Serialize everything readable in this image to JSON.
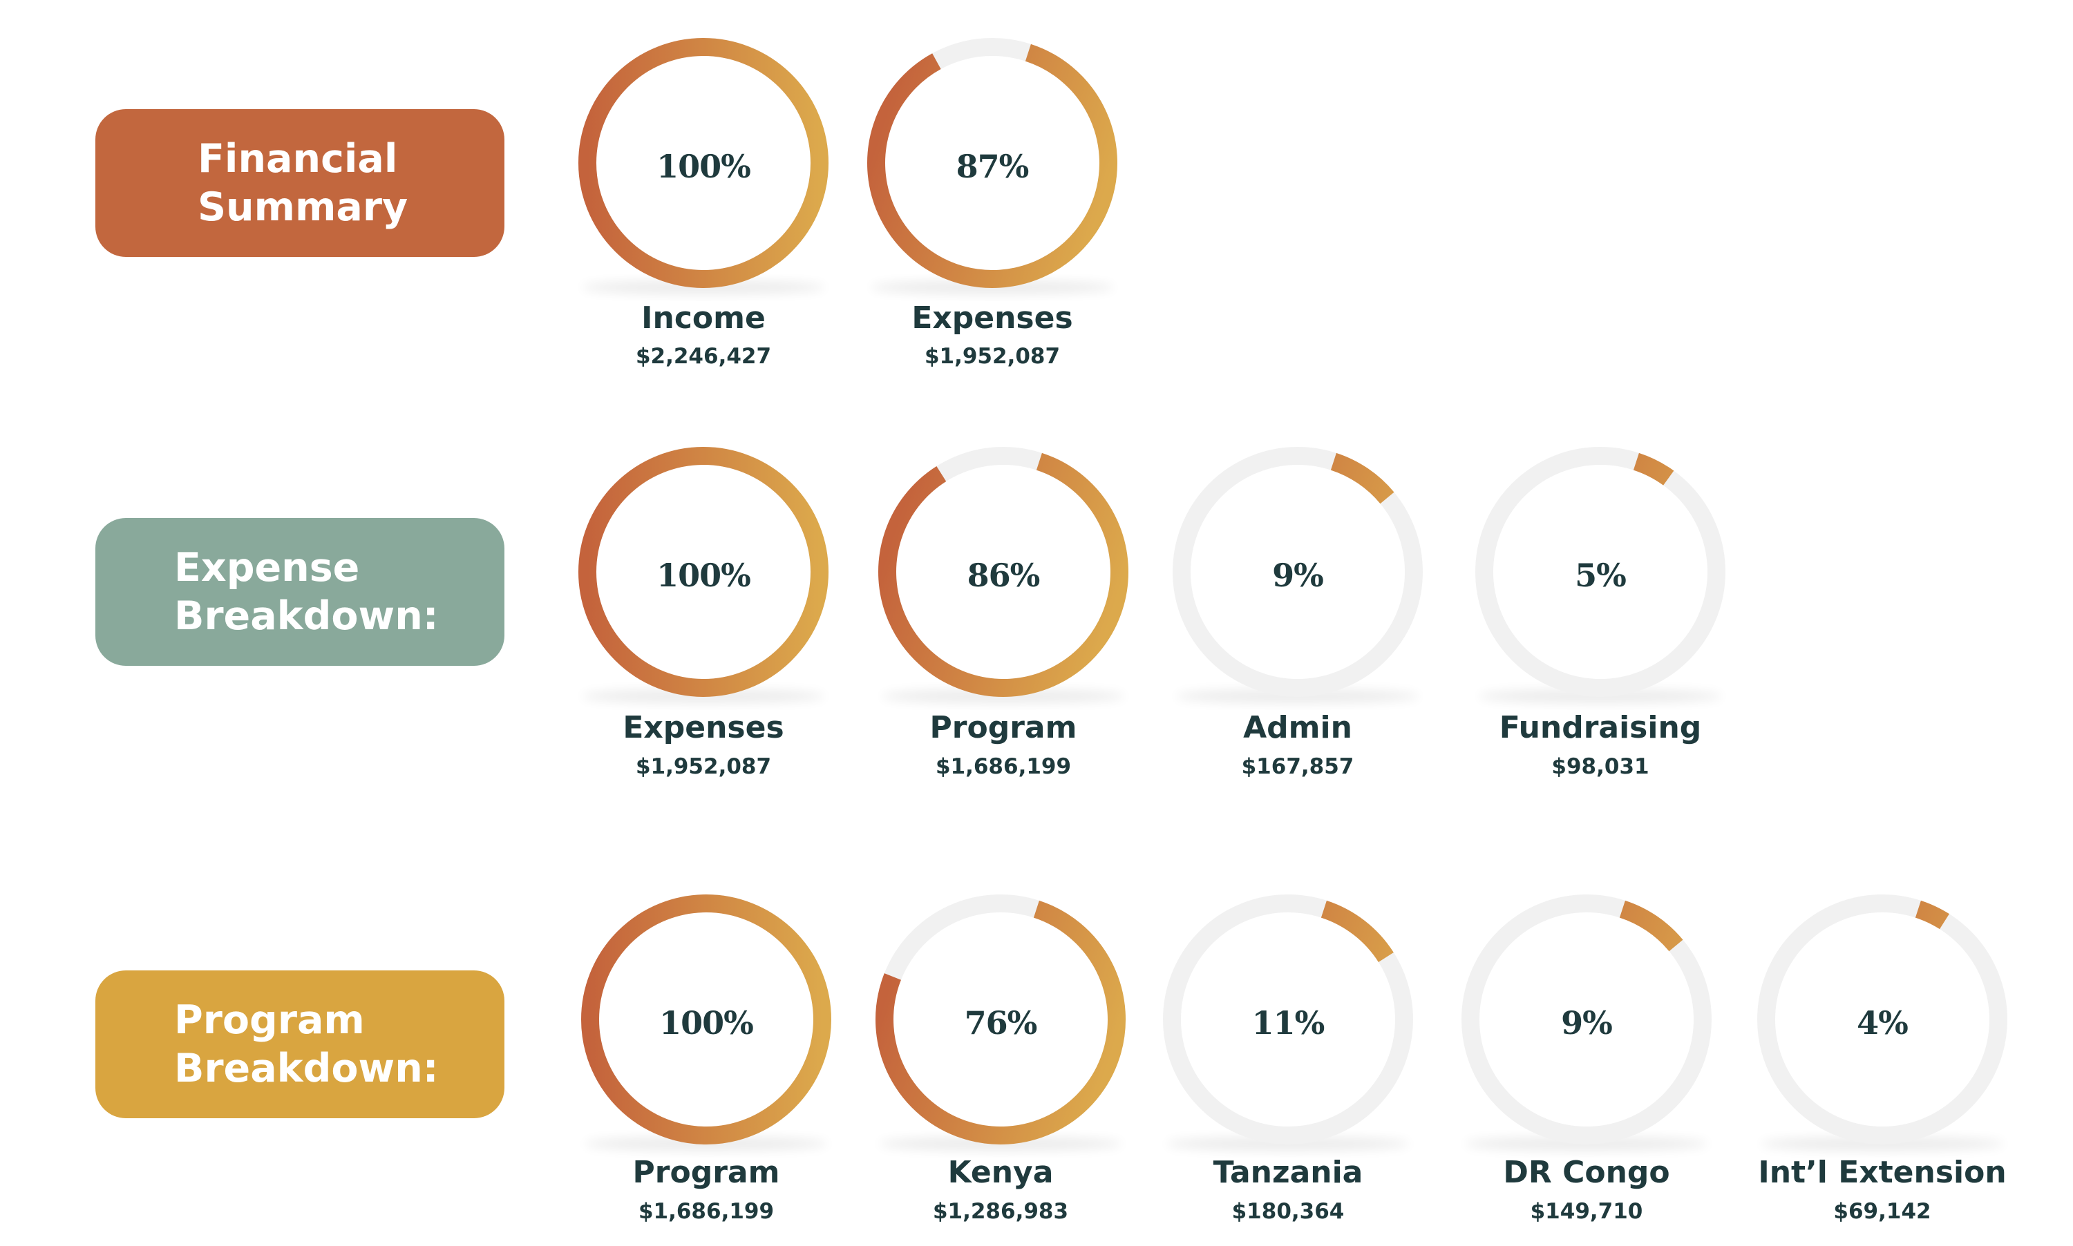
{
  "colors": {
    "ring_track": "#f1f1f1",
    "ring_gradient_start": "#c4633c",
    "ring_gradient_end": "#dca94c",
    "text_dark": "#1f3a3d"
  },
  "chart_data": [
    {
      "type": "donut",
      "section_label": [
        "Financial",
        "Summary"
      ],
      "section_color": "#c2673e",
      "rings": [
        {
          "percent": 100,
          "percent_label": "100%",
          "label": "Income",
          "amount": "$2,246,427"
        },
        {
          "percent": 87,
          "percent_label": "87%",
          "label": "Expenses",
          "amount": "$1,952,087"
        }
      ]
    },
    {
      "type": "donut",
      "section_label": [
        "Expense",
        "Breakdown:"
      ],
      "section_color": "#89a99b",
      "rings": [
        {
          "percent": 100,
          "percent_label": "100%",
          "label": "Expenses",
          "amount": "$1,952,087"
        },
        {
          "percent": 86,
          "percent_label": "86%",
          "label": "Program",
          "amount": "$1,686,199"
        },
        {
          "percent": 9,
          "percent_label": "9%",
          "label": "Admin",
          "amount": "$167,857"
        },
        {
          "percent": 5,
          "percent_label": "5%",
          "label": "Fundraising",
          "amount": "$98,031"
        }
      ]
    },
    {
      "type": "donut",
      "section_label": [
        "Program",
        "Breakdown:"
      ],
      "section_color": "#d9a540",
      "rings": [
        {
          "percent": 100,
          "percent_label": "100%",
          "label": "Program",
          "amount": "$1,686,199"
        },
        {
          "percent": 76,
          "percent_label": "76%",
          "label": "Kenya",
          "amount": "$1,286,983"
        },
        {
          "percent": 11,
          "percent_label": "11%",
          "label": "Tanzania",
          "amount": "$180,364"
        },
        {
          "percent": 9,
          "percent_label": "9%",
          "label": "DR Congo",
          "amount": "$149,710"
        },
        {
          "percent": 4,
          "percent_label": "4%",
          "label": "Int’l Extension",
          "amount": "$69,142"
        }
      ]
    }
  ]
}
